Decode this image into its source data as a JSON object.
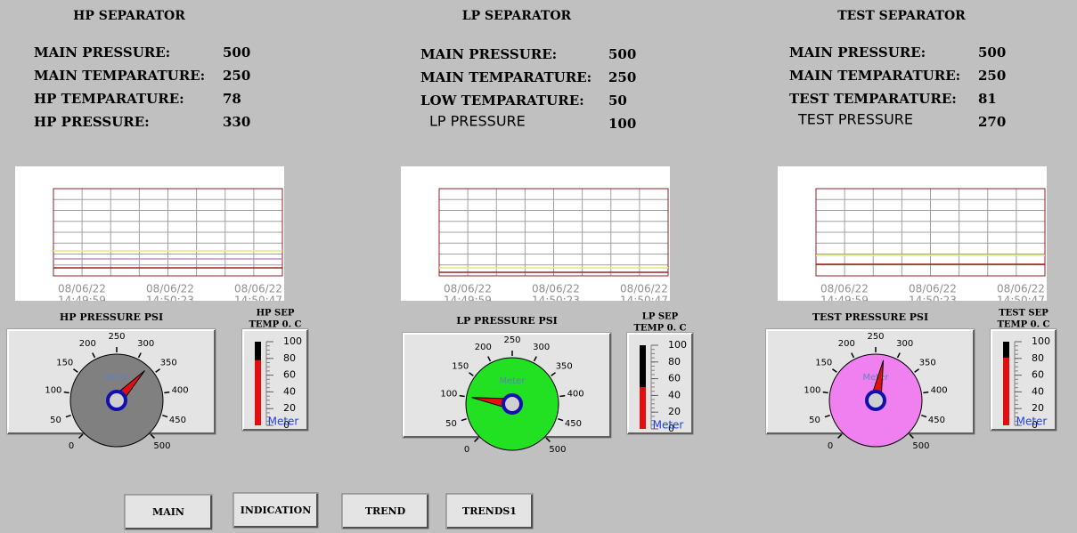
{
  "panels": [
    {
      "title": "HP SEPARATOR",
      "readings": [
        {
          "label": "MAIN PRESSURE:",
          "value": 500
        },
        {
          "label": "MAIN TEMPARATURE:",
          "value": 250
        },
        {
          "label": "HP TEMPARATURE:",
          "value": 78
        },
        {
          "label": "HP PRESSURE:",
          "value": 330
        }
      ],
      "trend": {
        "labels": [
          {
            "date": "08/06/22",
            "time": "14:49:59"
          },
          {
            "date": "08/06/22",
            "time": "14:50:23"
          },
          {
            "date": "08/06/22",
            "time": "14:50:47"
          }
        ]
      },
      "gauge": {
        "title": "HP PRESSURE PSI",
        "caption": "Meter",
        "face": "#808080",
        "ticks": [
          0,
          50,
          100,
          150,
          200,
          250,
          300,
          350,
          400,
          450,
          500
        ]
      },
      "thermo": {
        "title_lines": [
          "HP SEP",
          "TEMP 0. C"
        ],
        "caption": "Meter",
        "ticks": [
          0,
          20,
          40,
          60,
          80,
          100
        ]
      }
    },
    {
      "title": "LP SEPARATOR",
      "readings": [
        {
          "label": "MAIN PRESSURE:",
          "value": 500
        },
        {
          "label": "MAIN TEMPARATURE:",
          "value": 250
        },
        {
          "label": "LOW TEMPARATURE:",
          "value": 50
        },
        {
          "label": "LP PRESSURE",
          "value": 100,
          "plain": true
        }
      ],
      "trend": {
        "labels": [
          {
            "date": "08/06/22",
            "time": "14:49:59"
          },
          {
            "date": "08/06/22",
            "time": "14:50:23"
          },
          {
            "date": "08/06/22",
            "time": "14:50:47"
          }
        ]
      },
      "gauge": {
        "title": "LP PRESSURE PSI",
        "caption": "Meter",
        "face": "#22e022",
        "ticks": [
          0,
          50,
          100,
          150,
          200,
          250,
          300,
          350,
          400,
          450,
          500
        ]
      },
      "thermo": {
        "title_lines": [
          "LP SEP",
          "TEMP 0. C"
        ],
        "caption": "Meter",
        "ticks": [
          0,
          20,
          40,
          60,
          80,
          100
        ]
      }
    },
    {
      "title": "TEST SEPARATOR",
      "readings": [
        {
          "label": "MAIN PRESSURE:",
          "value": 500
        },
        {
          "label": "MAIN TEMPARATURE:",
          "value": 250
        },
        {
          "label": "TEST TEMPARATURE:",
          "value": 81
        },
        {
          "label": "TEST PRESSURE",
          "value": 270,
          "plain": true
        }
      ],
      "trend": {
        "labels": [
          {
            "date": "08/06/22",
            "time": "14:49:59"
          },
          {
            "date": "08/06/22",
            "time": "14:50:23"
          },
          {
            "date": "08/06/22",
            "time": "14:50:47"
          }
        ]
      },
      "gauge": {
        "title": "TEST PRESSURE PSI",
        "caption": "Meter",
        "face": "#f080f0",
        "ticks": [
          0,
          50,
          100,
          150,
          200,
          250,
          300,
          350,
          400,
          450,
          500
        ]
      },
      "thermo": {
        "title_lines": [
          "TEST SEP",
          "TEMP 0. C"
        ],
        "caption": "Meter",
        "ticks": [
          0,
          20,
          40,
          60,
          80,
          100
        ]
      }
    }
  ],
  "buttons": [
    "MAIN",
    "INDICATION",
    "TREND",
    "TRENDS1"
  ]
}
